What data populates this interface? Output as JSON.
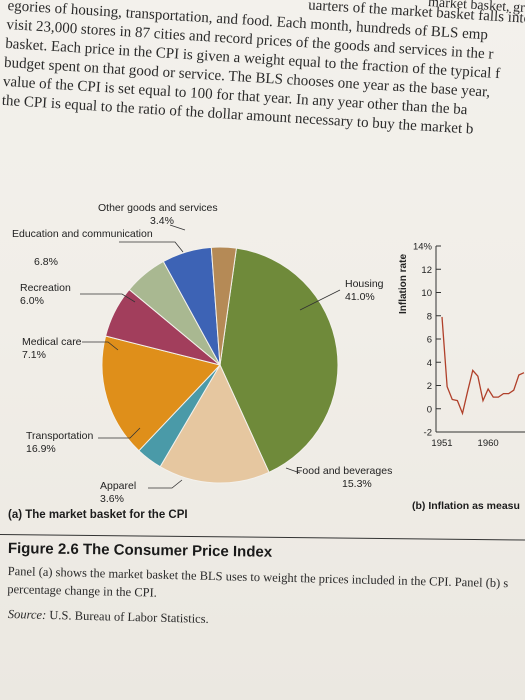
{
  "body_text": {
    "lines": [
      "egories of housing, transportation, and food. Each month, hundreds of BLS emp",
      "visit 23,000 stores in 87 cities and record prices of the goods and services in the r",
      "basket. Each price in the CPI is given a weight equal to the fraction of the typical f",
      "budget spent on that good or service. The BLS chooses one year as the base year,",
      "value of the CPI is set equal to 100 for that year. In any year other than the ba",
      "the CPI is equal to the ratio of the dollar amount necessary to buy the market b"
    ],
    "top_fragment": "uarters of the market basket falls into th",
    "top_right_fragment": "market basket, gr"
  },
  "chart_data": [
    {
      "type": "pie",
      "title": "(a) The market basket for the CPI",
      "slices": [
        {
          "label": "Housing",
          "value": 41.0,
          "value_label": "41.0%",
          "color": "#6f8a3a"
        },
        {
          "label": "Food and beverages",
          "value": 15.3,
          "value_label": "15.3%",
          "color": "#e6c7a0"
        },
        {
          "label": "Apparel",
          "value": 3.6,
          "value_label": "3.6%",
          "color": "#4a9aa8"
        },
        {
          "label": "Transportation",
          "value": 16.9,
          "value_label": "16.9%",
          "color": "#df8f1a"
        },
        {
          "label": "Medical care",
          "value": 7.1,
          "value_label": "7.1%",
          "color": "#a23e5c"
        },
        {
          "label": "Recreation",
          "value": 6.0,
          "value_label": "6.0%",
          "color": "#a9b891"
        },
        {
          "label": "Education and communication",
          "value": 6.8,
          "value_label": "6.8%",
          "color": "#3d63b5"
        },
        {
          "label": "Other goods and services",
          "value": 3.4,
          "value_label": "3.4%",
          "color": "#b58a56"
        }
      ]
    },
    {
      "type": "line",
      "title": "(b) Inflation as measu",
      "ylabel": "Inflation rate",
      "yticks": [
        "14%",
        "12",
        "10",
        "8",
        "6",
        "4",
        "2",
        "0",
        "-2"
      ],
      "ylim": [
        -2,
        14
      ],
      "xticks": [
        "1951",
        "1960"
      ],
      "series": [
        {
          "x": [
            1951,
            1952,
            1953,
            1954,
            1955,
            1956,
            1957,
            1958,
            1959,
            1960,
            1961,
            1962,
            1963,
            1964,
            1965,
            1966,
            1967
          ],
          "values": [
            7.9,
            1.9,
            0.8,
            0.7,
            -0.4,
            1.5,
            3.3,
            2.8,
            0.7,
            1.7,
            1.0,
            1.0,
            1.3,
            1.3,
            1.6,
            2.9,
            3.1
          ],
          "color": "#b0402a"
        }
      ]
    }
  ],
  "caption": {
    "figure_title": "Figure 2.6  The Consumer Price Index",
    "text_lines": [
      "Panel (a) shows the market basket the BLS uses to weight the prices included in the CPI. Panel (b) s",
      "percentage change in the CPI."
    ],
    "source_label": "Source:",
    "source_text": "U.S. Bureau of Labor Statistics."
  }
}
